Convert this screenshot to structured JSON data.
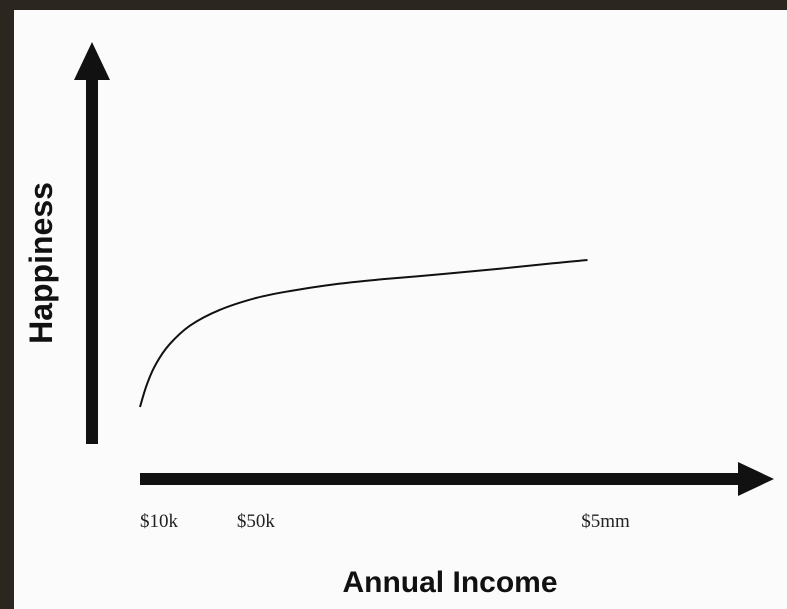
{
  "chart_data": {
    "type": "line",
    "title": "",
    "xlabel": "Annual Income",
    "ylabel": "Happiness",
    "xscale": "log",
    "x_tick_labels": [
      {
        "label": "$10k",
        "value": 10000
      },
      {
        "label": "$50k",
        "value": 50000
      },
      {
        "label": "$5mm",
        "value": 5000000
      }
    ],
    "series": [
      {
        "x": [
          10000,
          11000,
          12500,
          15000,
          20000,
          30000,
          50000,
          80000,
          150000,
          300000,
          700000,
          1500000,
          3000000,
          5000000
        ],
        "y": [
          0.05,
          0.18,
          0.3,
          0.41,
          0.52,
          0.61,
          0.68,
          0.72,
          0.76,
          0.79,
          0.82,
          0.85,
          0.88,
          0.9
        ]
      }
    ],
    "grid": false,
    "legend": "none",
    "colors": {
      "line": "#111111",
      "axes": "#111111"
    }
  }
}
